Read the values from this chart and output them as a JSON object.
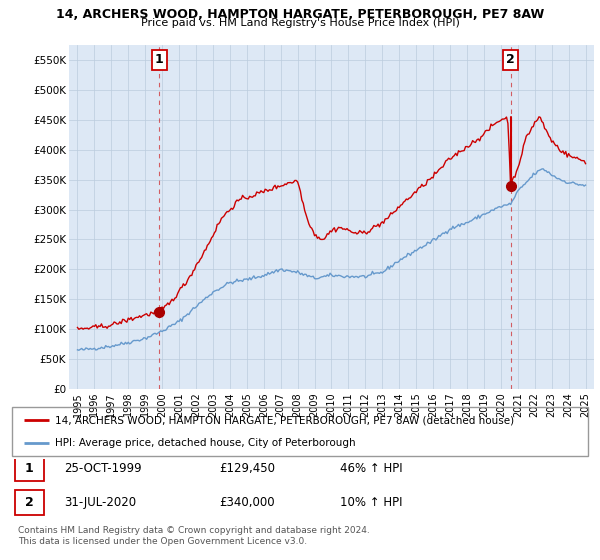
{
  "title": "14, ARCHERS WOOD, HAMPTON HARGATE, PETERBOROUGH, PE7 8AW",
  "subtitle": "Price paid vs. HM Land Registry's House Price Index (HPI)",
  "legend_line1": "14, ARCHERS WOOD, HAMPTON HARGATE, PETERBOROUGH, PE7 8AW (detached house)",
  "legend_line2": "HPI: Average price, detached house, City of Peterborough",
  "footnote": "Contains HM Land Registry data © Crown copyright and database right 2024.\nThis data is licensed under the Open Government Licence v3.0.",
  "sale1_label": "1",
  "sale1_date": "25-OCT-1999",
  "sale1_price": "£129,450",
  "sale1_hpi": "46% ↑ HPI",
  "sale2_label": "2",
  "sale2_date": "31-JUL-2020",
  "sale2_price": "£340,000",
  "sale2_hpi": "10% ↑ HPI",
  "hpi_color": "#6699cc",
  "hpi_fill_color": "#dde8f5",
  "price_color": "#cc0000",
  "marker_color": "#aa0000",
  "sale1_x": 1999.82,
  "sale1_y": 129450,
  "sale2_x": 2020.58,
  "sale2_y": 340000,
  "ylim": [
    0,
    575000
  ],
  "xlim_left": 1994.5,
  "xlim_right": 2025.5,
  "yticks": [
    0,
    50000,
    100000,
    150000,
    200000,
    250000,
    300000,
    350000,
    400000,
    450000,
    500000,
    550000
  ],
  "ytick_labels": [
    "£0",
    "£50K",
    "£100K",
    "£150K",
    "£200K",
    "£250K",
    "£300K",
    "£350K",
    "£400K",
    "£450K",
    "£500K",
    "£550K"
  ],
  "xticks": [
    1995,
    1996,
    1997,
    1998,
    1999,
    2000,
    2001,
    2002,
    2003,
    2004,
    2005,
    2006,
    2007,
    2008,
    2009,
    2010,
    2011,
    2012,
    2013,
    2014,
    2015,
    2016,
    2017,
    2018,
    2019,
    2020,
    2021,
    2022,
    2023,
    2024,
    2025
  ],
  "background_color": "#ffffff",
  "plot_bg_color": "#dde8f5",
  "grid_color": "#bbccdd"
}
